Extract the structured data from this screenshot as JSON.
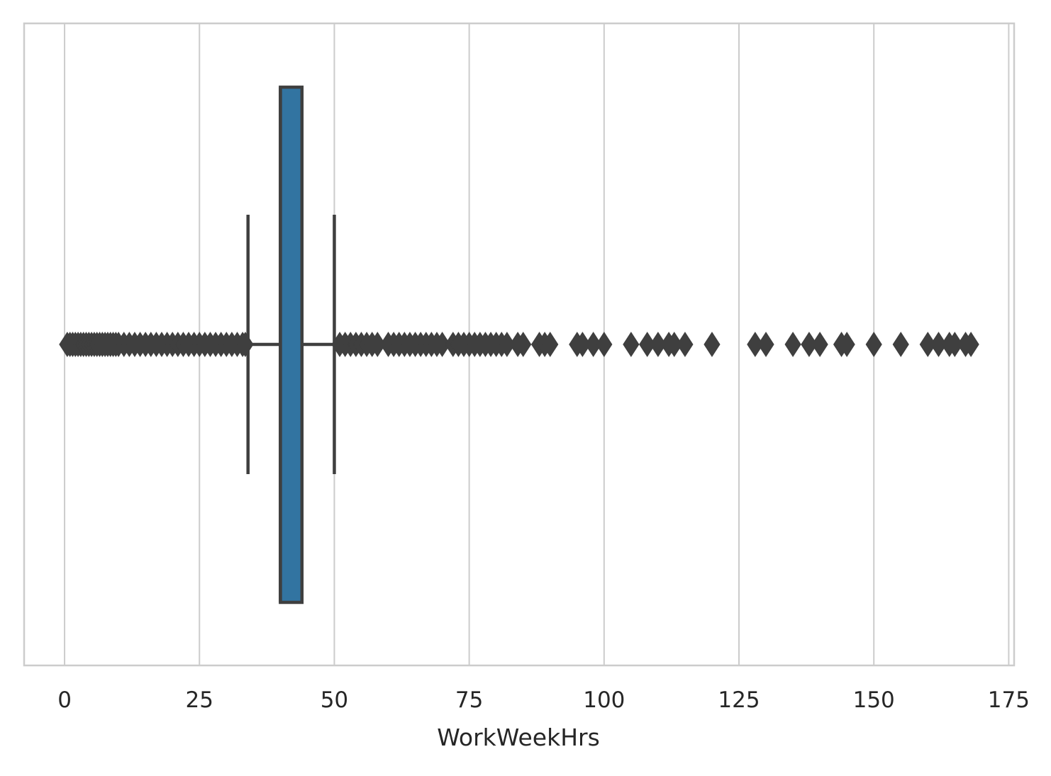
{
  "chart_data": {
    "type": "box",
    "orientation": "horizontal",
    "xlabel": "WorkWeekHrs",
    "ylabel": "",
    "xlim": [
      -7.5,
      176.0
    ],
    "xticks": [
      0,
      25,
      50,
      75,
      100,
      125,
      150,
      175
    ],
    "xtick_labels": [
      "0",
      "25",
      "50",
      "75",
      "100",
      "125",
      "150",
      "175"
    ],
    "grid": "vertical",
    "box": {
      "whisker_low": 34,
      "q1": 40,
      "median": 40,
      "q3": 44,
      "whisker_high": 50
    },
    "outliers": [
      0.5,
      1,
      1.5,
      2,
      2.5,
      3,
      3.5,
      4,
      4.5,
      5,
      5.5,
      6,
      6.5,
      7,
      7.5,
      8,
      8.5,
      9,
      9.5,
      10,
      11,
      12,
      13,
      14,
      15,
      16,
      17,
      18,
      19,
      20,
      21,
      22,
      23,
      24,
      25,
      26,
      27,
      28,
      29,
      30,
      31,
      32,
      33,
      33.5,
      51,
      52,
      53,
      54,
      55,
      56,
      57,
      58,
      60,
      61,
      62,
      63,
      64,
      65,
      66,
      67,
      68,
      69,
      70,
      72,
      73,
      74,
      75,
      76,
      77,
      78,
      79,
      80,
      81,
      82,
      84,
      85,
      88,
      89,
      90,
      95,
      96,
      98,
      100,
      105,
      108,
      110,
      112,
      113,
      115,
      120,
      128,
      130,
      135,
      138,
      140,
      144,
      145,
      150,
      155,
      160,
      162,
      164,
      165,
      167,
      168
    ],
    "colors": {
      "box_fill": "#3274a1",
      "line": "#3f3f3f",
      "grid": "#cccccc",
      "frame": "#cccccc",
      "text": "#262626"
    }
  }
}
